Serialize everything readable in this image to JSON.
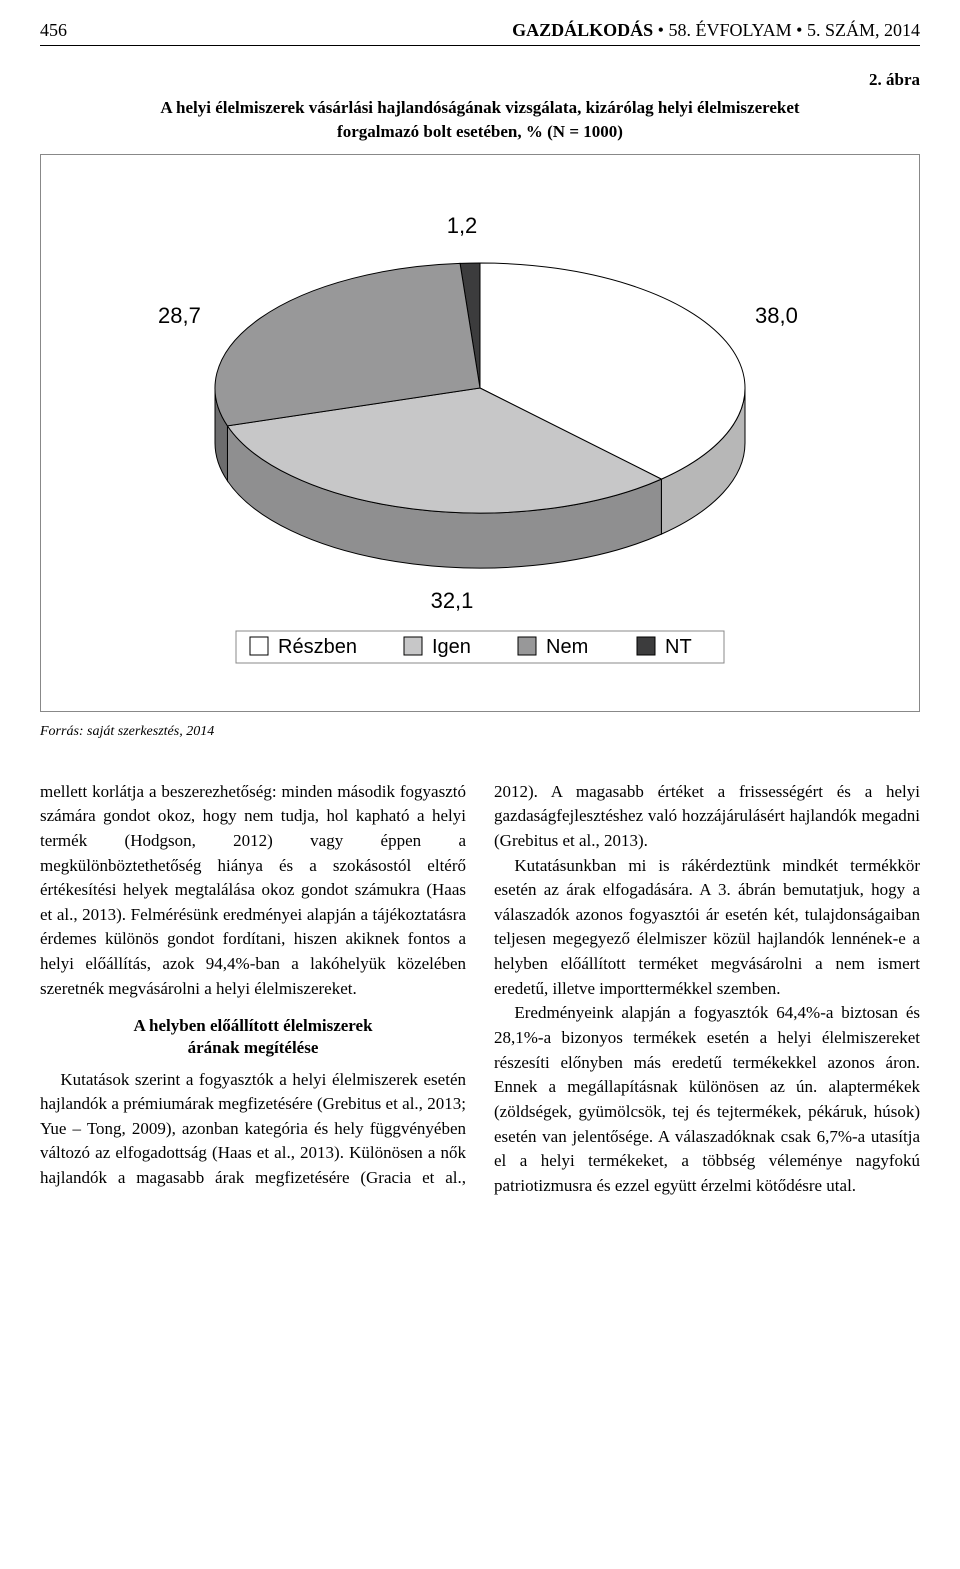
{
  "header": {
    "page_number": "456",
    "journal_name": "GAZDÁLKODÁS",
    "journal_middle_dot": " • ",
    "volume": "58.",
    "volume_word": "ÉVFOLYAM",
    "issue": "5.",
    "issue_word": "SZÁM,",
    "year": "2014"
  },
  "figure": {
    "label": "2. ábra",
    "caption_line1": "A helyi élelmiszerek vásárlási hajlandóságának vizsgálata, kizárólag helyi élelmiszereket",
    "caption_line2": "forgalmazó bolt esetében, % (N = 1000)",
    "source": "Forrás: saját szerkesztés, 2014"
  },
  "chart": {
    "type": "pie-3d",
    "slices": [
      {
        "label": "Részben",
        "value": 38.0,
        "color": "#ffffff",
        "border": "#000000"
      },
      {
        "label": "Igen",
        "value": 32.1,
        "color": "#c7c7c8",
        "border": "#000000"
      },
      {
        "label": "Nem",
        "value": 28.7,
        "color": "#989899",
        "border": "#000000"
      },
      {
        "label": "NT",
        "value": 1.2,
        "color": "#3c3c3d",
        "border": "#000000"
      }
    ],
    "data_labels": {
      "reszben": "38,0",
      "igen": "32,1",
      "nem": "28,7",
      "nt": "1,2"
    },
    "legend_items": [
      "Részben",
      "Igen",
      "Nem",
      "NT"
    ],
    "legend_border_color": "#888888",
    "font_family": "Arial, sans-serif",
    "label_fontsize": 22,
    "legend_fontsize": 20,
    "background": "#ffffff",
    "aspect_w": 820,
    "aspect_h": 520
  },
  "body": {
    "col1_p1": "mellett korlátja a beszerezhetőség: minden második fogyasztó számára gondot okoz, hogy nem tudja, hol kapható a helyi termék (Hodgson, 2012) vagy éppen a megkülönböztethetőség hiánya és a szokásostól eltérő értékesítési helyek megtalálása okoz gondot számukra (Haas et al., 2013). Felmérésünk eredményei alapján a tájékoztatásra érdemes különös gondot fordítani, hiszen akiknek fontos a helyi előállítás, azok 94,4%-ban a lakóhelyük közelében szeretnék megvásárolni a helyi élelmiszereket.",
    "subheading_line1": "A helyben előállított élelmiszerek",
    "subheading_line2": "árának megítélése",
    "col1_p2": "Kutatások szerint a fogyasztók a helyi élelmiszerek esetén hajlandók a prémiumárak megfizetésére (Grebitus et al., 2013; Yue – Tong, 2009), azonban kategória és hely függvényében változó az elfogadottság (Haas et al., 2013). Különösen a nők hajlandók a magasabb árak megfizetésére (Gracia et al., 2012). A magasabb értéket a ",
    "col2_p1_cont": "frissességért és a helyi gazdaságfejlesztéshez való hozzájárulásért hajlandók megadni (Grebitus et al., 2013).",
    "col2_p2": "Kutatásunkban mi is rákérdeztünk mindkét termékkör esetén az árak elfogadására. A 3. ábrán bemutatjuk, hogy a válaszadók azonos fogyasztói ár esetén két, tulajdonságaiban teljesen megegyező élelmiszer közül hajlandók lennének-e a helyben előállított terméket megvásárolni a nem ismert eredetű, illetve importtermékkel szemben.",
    "col2_p3": "Eredményeink alapján a fogyasztók 64,4%-a biztosan és 28,1%-a bizonyos termékek esetén a helyi élelmiszereket részesíti előnyben más eredetű termékekkel azonos áron. Ennek a megállapításnak különösen az ún. alaptermékek (zöldségek, gyümölcsök, tej és tejtermékek, pékáruk, húsok) esetén van jelentősége. A válaszadóknak csak 6,7%-a utasítja el a helyi termékeket, a többség véleménye nagyfokú patriotizmusra és ezzel együtt érzelmi kötődésre utal."
  }
}
